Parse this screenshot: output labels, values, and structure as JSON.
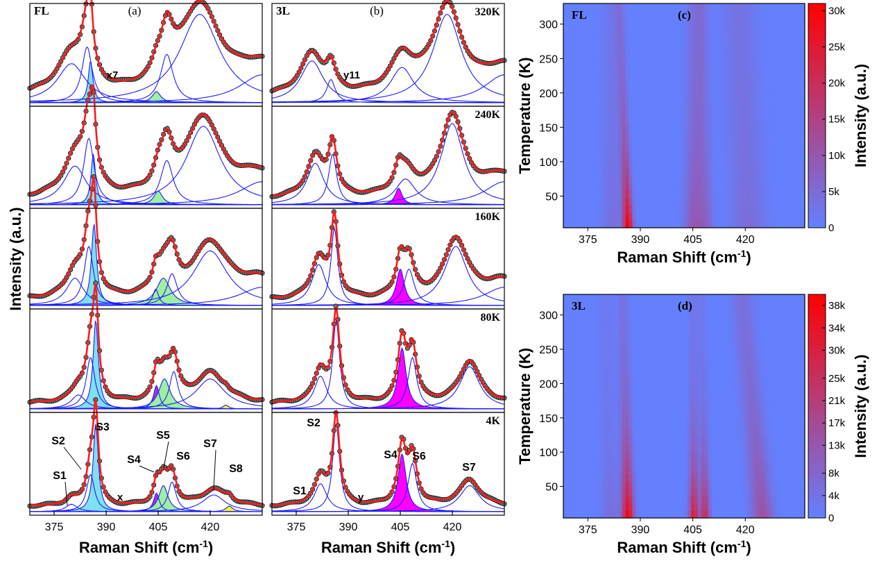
{
  "chart_data": [
    {
      "type": "line",
      "panel": "(a)",
      "sample": "FL",
      "xlabel": "Raman Shift (cm-1)",
      "ylabel": "Intensity (a.u.)",
      "x_ticks": [
        375,
        390,
        405,
        420
      ],
      "xlim": [
        368,
        435
      ],
      "rows": [
        {
          "temp": "320K",
          "annotation": "x7",
          "peaks": [
            {
              "x": 380,
              "h": 0.42,
              "w": 5
            },
            {
              "x": 384.5,
              "h": 0.6,
              "w": 1.8
            },
            {
              "x": 385.5,
              "h": 0.45,
              "w": 0.8,
              "fill": "#7fe0f0"
            },
            {
              "x": 404.5,
              "h": 0.12,
              "w": 1.5,
              "fill": "#9ef09e"
            },
            {
              "x": 407.5,
              "h": 0.52,
              "w": 2.2
            },
            {
              "x": 417,
              "h": 0.95,
              "w": 7
            },
            {
              "x": 435,
              "h": 0.3,
              "w": 8
            }
          ]
        },
        {
          "temp": "240K",
          "peaks": [
            {
              "x": 381,
              "h": 0.42,
              "w": 4
            },
            {
              "x": 385,
              "h": 0.72,
              "w": 1.8
            },
            {
              "x": 386.3,
              "h": 0.55,
              "w": 0.8,
              "fill": "#7fe0f0"
            },
            {
              "x": 405,
              "h": 0.15,
              "w": 1.5,
              "fill": "#9ef09e"
            },
            {
              "x": 407.5,
              "h": 0.48,
              "w": 2.2
            },
            {
              "x": 418,
              "h": 0.85,
              "w": 6
            },
            {
              "x": 435,
              "h": 0.25,
              "w": 8
            }
          ]
        },
        {
          "temp": "160K",
          "peaks": [
            {
              "x": 381,
              "h": 0.3,
              "w": 3
            },
            {
              "x": 385,
              "h": 0.65,
              "w": 1.6
            },
            {
              "x": 386.5,
              "h": 0.9,
              "w": 0.9,
              "fill": "#7fe0f0"
            },
            {
              "x": 404.3,
              "h": 0.18,
              "w": 1.0,
              "fill": "#aa33dd"
            },
            {
              "x": 406.5,
              "h": 0.3,
              "w": 2.5,
              "fill": "#9ef09e"
            },
            {
              "x": 409,
              "h": 0.35,
              "w": 1.8
            },
            {
              "x": 420,
              "h": 0.6,
              "w": 6
            },
            {
              "x": 435,
              "h": 0.2,
              "w": 8
            }
          ]
        },
        {
          "temp": "80K",
          "peaks": [
            {
              "x": 382,
              "h": 0.15,
              "w": 2.5
            },
            {
              "x": 385.5,
              "h": 0.55,
              "w": 1.5
            },
            {
              "x": 387,
              "h": 0.95,
              "w": 0.9,
              "fill": "#7fe0f0"
            },
            {
              "x": 404.5,
              "h": 0.25,
              "w": 1.0,
              "fill": "#aa33dd"
            },
            {
              "x": 406.8,
              "h": 0.32,
              "w": 2.0,
              "fill": "#9ef09e"
            },
            {
              "x": 409.5,
              "h": 0.4,
              "w": 1.5
            },
            {
              "x": 420,
              "h": 0.32,
              "w": 5
            },
            {
              "x": 424.5,
              "h": 0.04,
              "w": 1.0,
              "fill": "#ffff00"
            }
          ]
        },
        {
          "temp": "4K",
          "annotation": "x",
          "peaks": [
            {
              "x": 380,
              "h": 0.08,
              "w": 2
            },
            {
              "x": 385.5,
              "h": 0.4,
              "w": 1.4
            },
            {
              "x": 387,
              "h": 0.95,
              "w": 0.9,
              "fill": "#7fe0f0"
            },
            {
              "x": 404.5,
              "h": 0.2,
              "w": 1.0,
              "fill": "#aa33dd"
            },
            {
              "x": 406.5,
              "h": 0.28,
              "w": 1.6,
              "fill": "#9ef09e"
            },
            {
              "x": 409,
              "h": 0.32,
              "w": 1.4
            },
            {
              "x": 421,
              "h": 0.18,
              "w": 4
            },
            {
              "x": 425.5,
              "h": 0.06,
              "w": 1.2,
              "fill": "#ffff00"
            }
          ]
        }
      ],
      "peak_labels": [
        "S1",
        "S2",
        "S3",
        "S4",
        "S5",
        "S6",
        "S7",
        "S8"
      ]
    },
    {
      "type": "line",
      "panel": "(b)",
      "sample": "3L",
      "xlabel": "Raman Shift (cm-1)",
      "x_ticks": [
        375,
        390,
        405,
        420
      ],
      "xlim": [
        368,
        435
      ],
      "rows": [
        {
          "temp": "320K",
          "annotation": "y11",
          "peaks": [
            {
              "x": 379.5,
              "h": 0.45,
              "w": 4
            },
            {
              "x": 385,
              "h": 0.25,
              "w": 1.5
            },
            {
              "x": 405.5,
              "h": 0.38,
              "w": 4
            },
            {
              "x": 418.5,
              "h": 0.95,
              "w": 5
            },
            {
              "x": 435,
              "h": 0.3,
              "w": 7
            }
          ]
        },
        {
          "temp": "240K",
          "peaks": [
            {
              "x": 380.5,
              "h": 0.45,
              "w": 3
            },
            {
              "x": 385.5,
              "h": 0.55,
              "w": 1.4
            },
            {
              "x": 404.5,
              "h": 0.18,
              "w": 1.2,
              "fill": "#ff00ff"
            },
            {
              "x": 406.5,
              "h": 0.28,
              "w": 3.5
            },
            {
              "x": 420,
              "h": 0.88,
              "w": 4
            },
            {
              "x": 435,
              "h": 0.25,
              "w": 7
            }
          ]
        },
        {
          "temp": "160K",
          "peaks": [
            {
              "x": 381.5,
              "h": 0.45,
              "w": 2.5
            },
            {
              "x": 386,
              "h": 0.85,
              "w": 1.2
            },
            {
              "x": 405,
              "h": 0.4,
              "w": 1.4,
              "fill": "#ff00ff"
            },
            {
              "x": 407.5,
              "h": 0.4,
              "w": 1.8
            },
            {
              "x": 421,
              "h": 0.65,
              "w": 4
            },
            {
              "x": 435,
              "h": 0.2,
              "w": 7
            }
          ]
        },
        {
          "temp": "80K",
          "peaks": [
            {
              "x": 382,
              "h": 0.35,
              "w": 2.2
            },
            {
              "x": 386.5,
              "h": 0.95,
              "w": 1.2
            },
            {
              "x": 405.5,
              "h": 0.65,
              "w": 1.4,
              "fill": "#ff00ff"
            },
            {
              "x": 408.5,
              "h": 0.55,
              "w": 1.5
            },
            {
              "x": 425,
              "h": 0.45,
              "w": 3.5
            }
          ]
        },
        {
          "temp": "4K",
          "annotation": "y",
          "peaks": [
            {
              "x": 382,
              "h": 0.3,
              "w": 2.2
            },
            {
              "x": 386.5,
              "h": 0.95,
              "w": 1.2
            },
            {
              "x": 405.5,
              "h": 0.62,
              "w": 1.4,
              "fill": "#ff00ff"
            },
            {
              "x": 408.5,
              "h": 0.52,
              "w": 1.5
            },
            {
              "x": 425,
              "h": 0.28,
              "w": 3.5
            }
          ]
        }
      ],
      "peak_labels": [
        "S1",
        "S2",
        "S4",
        "S6",
        "S7"
      ]
    },
    {
      "type": "heatmap",
      "panel": "(c)",
      "sample": "FL",
      "xlabel": "Raman Shift (cm-1)",
      "ylabel": "Temperature (K)",
      "x_ticks": [
        375,
        390,
        405,
        420
      ],
      "y_ticks": [
        50,
        100,
        150,
        200,
        250,
        300
      ],
      "xlim": [
        368,
        437
      ],
      "ylim": [
        4,
        330
      ],
      "colorbar_label": "Intensity (a.u.)",
      "colorbar_ticks": [
        "0",
        "5k",
        "10k",
        "15k",
        "20k",
        "25k",
        "30k"
      ],
      "colorbar_max": 31000,
      "ridges": [
        {
          "x0": 386.5,
          "x1": 384.0,
          "w": 1.3,
          "base": 0.1,
          "amp": 0.95,
          "decay": 80
        },
        {
          "x0": 382.0,
          "x1": 382.0,
          "w": 3.0,
          "base": 0.08,
          "amp": 0.05,
          "decay": 100
        },
        {
          "x0": 405.5,
          "x1": 406.0,
          "w": 2.8,
          "base": 0.12,
          "amp": 0.2,
          "decay": 120
        },
        {
          "x0": 409.0,
          "x1": 407.5,
          "w": 2.0,
          "base": 0.06,
          "amp": 0.12,
          "decay": 90
        },
        {
          "x0": 421.0,
          "x1": 418.0,
          "w": 5.0,
          "base": 0.1,
          "amp": 0.05,
          "decay": 150
        }
      ]
    },
    {
      "type": "heatmap",
      "panel": "(d)",
      "sample": "3L",
      "xlabel": "Raman Shift (cm-1)",
      "ylabel": "Temperature (K)",
      "x_ticks": [
        375,
        390,
        405,
        420
      ],
      "y_ticks": [
        50,
        100,
        150,
        200,
        250,
        300
      ],
      "xlim": [
        368,
        437
      ],
      "ylim": [
        4,
        330
      ],
      "colorbar_label": "Intensity (a.u.)",
      "colorbar_ticks": [
        "0",
        "4k",
        "8k",
        "13k",
        "17k",
        "21k",
        "25k",
        "30k",
        "34k",
        "38k"
      ],
      "colorbar_max": 40000,
      "ridges": [
        {
          "x0": 386.5,
          "x1": 385.0,
          "w": 1.6,
          "base": 0.1,
          "amp": 0.9,
          "decay": 85
        },
        {
          "x0": 381.5,
          "x1": 380.0,
          "w": 2.5,
          "base": 0.05,
          "amp": 0.1,
          "decay": 90
        },
        {
          "x0": 405.3,
          "x1": 405.0,
          "w": 1.3,
          "base": 0.08,
          "amp": 0.75,
          "decay": 70
        },
        {
          "x0": 408.5,
          "x1": 407.5,
          "w": 1.3,
          "base": 0.06,
          "amp": 0.65,
          "decay": 70
        },
        {
          "x0": 425.0,
          "x1": 419.0,
          "w": 3.0,
          "base": 0.12,
          "amp": 0.25,
          "decay": 120
        }
      ]
    }
  ]
}
